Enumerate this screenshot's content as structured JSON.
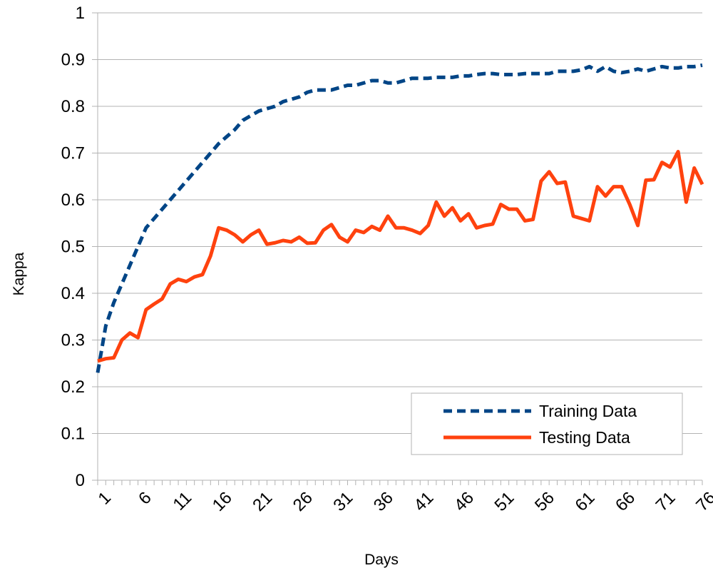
{
  "chart_data": {
    "type": "line",
    "xlabel": "Days",
    "ylabel": "Kappa",
    "ylim": [
      0,
      1
    ],
    "yticks": [
      "0",
      "0.1",
      "0.2",
      "0.3",
      "0.4",
      "0.5",
      "0.6",
      "0.7",
      "0.8",
      "0.9",
      "1"
    ],
    "xticks": [
      "1",
      "6",
      "11",
      "16",
      "21",
      "26",
      "31",
      "36",
      "41",
      "46",
      "51",
      "56",
      "61",
      "66",
      "71",
      "76"
    ],
    "grid": "horizontal",
    "legend_position": "bottom-right",
    "x": [
      1,
      2,
      3,
      4,
      5,
      6,
      7,
      8,
      9,
      10,
      11,
      12,
      13,
      14,
      15,
      16,
      17,
      18,
      19,
      20,
      21,
      22,
      23,
      24,
      25,
      26,
      27,
      28,
      29,
      30,
      31,
      32,
      33,
      34,
      35,
      36,
      37,
      38,
      39,
      40,
      41,
      42,
      43,
      44,
      45,
      46,
      47,
      48,
      49,
      50,
      51,
      52,
      53,
      54,
      55,
      56,
      57,
      58,
      59,
      60,
      61,
      62,
      63,
      64,
      65,
      66,
      67,
      68,
      69,
      70,
      71,
      72,
      73,
      74,
      75,
      76
    ],
    "series": [
      {
        "name": "Training Data",
        "color": "#004586",
        "style": "dashed",
        "values": [
          0.23,
          0.33,
          0.38,
          0.42,
          0.46,
          0.5,
          0.54,
          0.56,
          0.58,
          0.6,
          0.62,
          0.64,
          0.66,
          0.68,
          0.7,
          0.72,
          0.735,
          0.75,
          0.77,
          0.78,
          0.79,
          0.795,
          0.8,
          0.81,
          0.815,
          0.82,
          0.83,
          0.835,
          0.835,
          0.835,
          0.84,
          0.845,
          0.845,
          0.85,
          0.855,
          0.855,
          0.85,
          0.85,
          0.855,
          0.86,
          0.86,
          0.86,
          0.862,
          0.862,
          0.862,
          0.865,
          0.865,
          0.868,
          0.87,
          0.87,
          0.868,
          0.868,
          0.868,
          0.87,
          0.87,
          0.87,
          0.87,
          0.875,
          0.875,
          0.875,
          0.878,
          0.885,
          0.875,
          0.885,
          0.875,
          0.872,
          0.875,
          0.88,
          0.875,
          0.88,
          0.885,
          0.882,
          0.882,
          0.885,
          0.885,
          0.888
        ]
      },
      {
        "name": "Testing Data",
        "color": "#ff420e",
        "style": "solid",
        "values": [
          0.255,
          0.26,
          0.262,
          0.3,
          0.315,
          0.305,
          0.365,
          0.377,
          0.388,
          0.42,
          0.43,
          0.425,
          0.435,
          0.44,
          0.48,
          0.54,
          0.535,
          0.525,
          0.51,
          0.525,
          0.535,
          0.505,
          0.508,
          0.513,
          0.51,
          0.52,
          0.507,
          0.508,
          0.535,
          0.547,
          0.52,
          0.51,
          0.535,
          0.53,
          0.543,
          0.535,
          0.565,
          0.54,
          0.54,
          0.535,
          0.528,
          0.545,
          0.595,
          0.565,
          0.583,
          0.555,
          0.57,
          0.54,
          0.545,
          0.548,
          0.59,
          0.58,
          0.58,
          0.555,
          0.558,
          0.64,
          0.66,
          0.635,
          0.638,
          0.565,
          0.56,
          0.555,
          0.628,
          0.608,
          0.628,
          0.628,
          0.59,
          0.545,
          0.642,
          0.643,
          0.68,
          0.67,
          0.703,
          0.595,
          0.668,
          0.633
        ]
      }
    ]
  }
}
